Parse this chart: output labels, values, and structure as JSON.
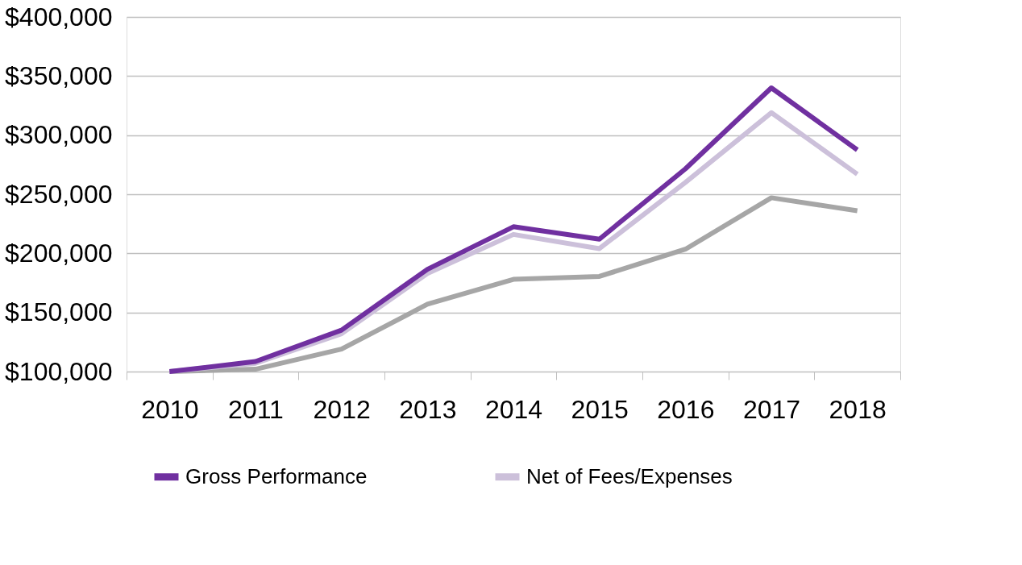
{
  "chart_data": {
    "type": "line",
    "categories": [
      "2010",
      "2011",
      "2012",
      "2013",
      "2014",
      "2015",
      "2016",
      "2017",
      "2018"
    ],
    "series": [
      {
        "name": "Gross Performance",
        "color": "#7030a0",
        "values": [
          100000,
          108500,
          135000,
          186500,
          222500,
          212000,
          271500,
          340000,
          287500
        ]
      },
      {
        "name": "Net of Fees/Expenses",
        "color": "#ccc0da",
        "values": [
          100000,
          107000,
          132000,
          183000,
          216000,
          204000,
          260000,
          319000,
          267000
        ]
      },
      {
        "color": "#a6a6a6",
        "values": [
          100000,
          102000,
          119000,
          157000,
          178000,
          180500,
          203500,
          247000,
          236000
        ]
      }
    ],
    "ylim": [
      100000,
      400000
    ],
    "yticks": [
      {
        "value": 100000,
        "label": "$100,000"
      },
      {
        "value": 150000,
        "label": "$150,000"
      },
      {
        "value": 200000,
        "label": "$200,000"
      },
      {
        "value": 250000,
        "label": "$250,000"
      },
      {
        "value": 300000,
        "label": "$300,000"
      },
      {
        "value": 350000,
        "label": "$350,000"
      },
      {
        "value": 400000,
        "label": "$400,000"
      }
    ],
    "grid": "y",
    "legend": "bottom",
    "marker": "none",
    "line_style": "solid"
  }
}
